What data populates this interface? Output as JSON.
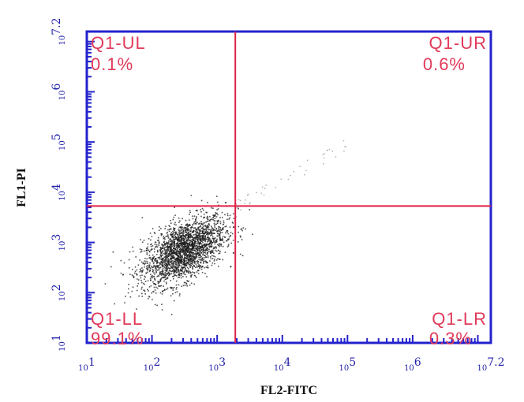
{
  "chart_data": {
    "type": "scatter",
    "xlabel": "FL2-FITC",
    "ylabel": "FL1-PI",
    "xscale": "log",
    "yscale": "log",
    "xlim": [
      10,
      15848931.9
    ],
    "ylim": [
      10,
      15848931.9
    ],
    "x_ticks": [
      {
        "base": "10",
        "exp": "1"
      },
      {
        "base": "10",
        "exp": "2"
      },
      {
        "base": "10",
        "exp": "3"
      },
      {
        "base": "10",
        "exp": "4"
      },
      {
        "base": "10",
        "exp": "5"
      },
      {
        "base": "10",
        "exp": "6"
      },
      {
        "base": "10",
        "exp": "7.2"
      }
    ],
    "y_ticks": [
      {
        "base": "10",
        "exp": "1"
      },
      {
        "base": "10",
        "exp": "2"
      },
      {
        "base": "10",
        "exp": "3"
      },
      {
        "base": "10",
        "exp": "4"
      },
      {
        "base": "10",
        "exp": "5"
      },
      {
        "base": "10",
        "exp": "6"
      },
      {
        "base": "10",
        "exp": "7.2"
      }
    ],
    "gates": {
      "x": 1900,
      "y": 5300
    },
    "quadrants": [
      {
        "name": "Q1-UL",
        "percent": "0.1%",
        "corner": "top-left"
      },
      {
        "name": "Q1-UR",
        "percent": "0.6%",
        "corner": "top-right"
      },
      {
        "name": "Q1-LL",
        "percent": "99.1%",
        "corner": "bottom-left"
      },
      {
        "name": "Q1-LR",
        "percent": "0.3%",
        "corner": "bottom-right"
      }
    ],
    "population": {
      "center": [
        300,
        700
      ],
      "spread_log10": [
        0.32,
        0.34
      ],
      "events": 2400
    },
    "colors": {
      "axis": "#2222cc",
      "gate": "#dd2244",
      "text": "#e03a5a",
      "dots": "#1a1a1a"
    }
  }
}
